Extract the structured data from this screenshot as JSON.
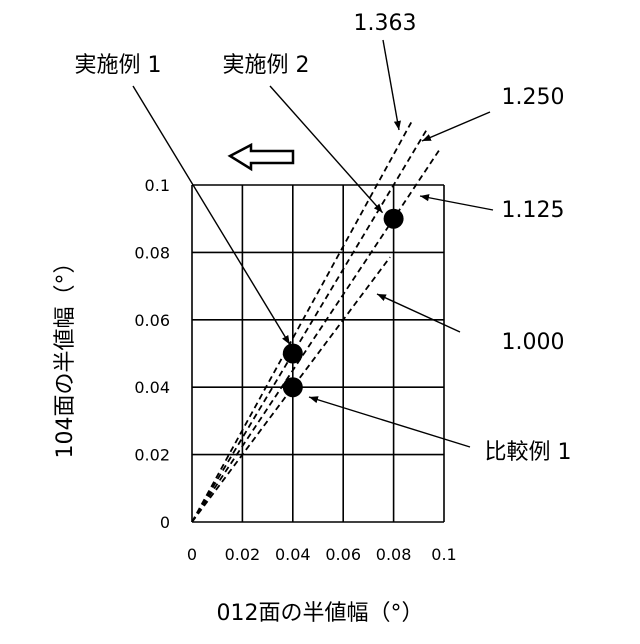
{
  "chart_data": {
    "type": "scatter",
    "xlabel": "012面の半値幅（°）",
    "ylabel": "104面の半値幅（°）",
    "xlim": [
      0,
      0.1
    ],
    "ylim": [
      0,
      0.1
    ],
    "x_ticks": [
      "0",
      "0.02",
      "0.04",
      "0.06",
      "0.08",
      "0.1"
    ],
    "y_ticks": [
      "0",
      "0.02",
      "0.04",
      "0.06",
      "0.08",
      "0.1"
    ],
    "grid": true,
    "points": [
      {
        "label": "実施例 1",
        "x": 0.04,
        "y": 0.05
      },
      {
        "label": "実施例 2",
        "x": 0.08,
        "y": 0.09
      },
      {
        "label": "比較例 1",
        "x": 0.04,
        "y": 0.04
      }
    ],
    "ratio_lines": [
      {
        "label": "1.363",
        "slope": 1.363,
        "x_end": 0.087
      },
      {
        "label": "1.250",
        "slope": 1.25,
        "x_end": 0.0935
      },
      {
        "label": "1.125",
        "slope": 1.125,
        "x_end": 0.0985
      },
      {
        "label": "1.000",
        "slope": 1.0,
        "x_end": 0.0786
      }
    ],
    "direction_arrow": "left",
    "colors": {
      "ink": "#000000",
      "background": "#ffffff"
    }
  }
}
